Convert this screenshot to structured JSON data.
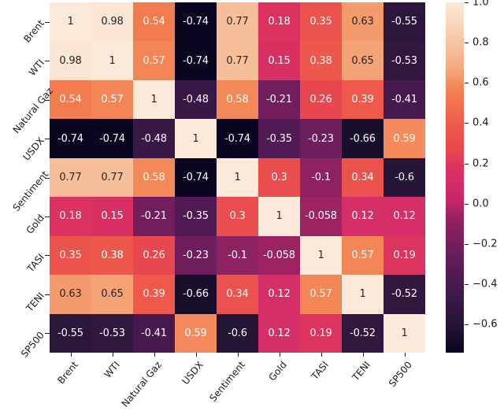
{
  "figure": {
    "background": "#ffffff",
    "axis_text_color": "#1a1a1a"
  },
  "chart_data": {
    "type": "heatmap",
    "title": "",
    "description": "Correlation matrix heatmap of market variables",
    "categories": [
      "Brent",
      "WTI",
      "Natural Gaz",
      "USDX",
      "Sentiment",
      "Gold",
      "TASI",
      "TENI",
      "SP500"
    ],
    "matrix": [
      [
        1,
        0.98,
        0.54,
        -0.74,
        0.77,
        0.18,
        0.35,
        0.63,
        -0.55
      ],
      [
        0.98,
        1,
        0.57,
        -0.74,
        0.77,
        0.15,
        0.38,
        0.65,
        -0.53
      ],
      [
        0.54,
        0.57,
        1,
        -0.48,
        0.58,
        -0.21,
        0.26,
        0.39,
        -0.41
      ],
      [
        -0.74,
        -0.74,
        -0.48,
        1,
        -0.74,
        -0.35,
        -0.23,
        -0.66,
        0.59
      ],
      [
        0.77,
        0.77,
        0.58,
        -0.74,
        1,
        0.3,
        -0.1,
        0.34,
        -0.6
      ],
      [
        0.18,
        0.15,
        -0.21,
        -0.35,
        0.3,
        1,
        -0.058,
        0.12,
        0.12
      ],
      [
        0.35,
        0.38,
        0.26,
        -0.23,
        -0.1,
        -0.058,
        1,
        0.57,
        0.19
      ],
      [
        0.63,
        0.65,
        0.39,
        -0.66,
        0.34,
        0.12,
        0.57,
        1,
        -0.52
      ],
      [
        -0.55,
        -0.53,
        -0.41,
        0.59,
        -0.6,
        0.12,
        0.19,
        -0.52,
        1
      ]
    ],
    "vmin": -0.74,
    "vmax": 1.0,
    "grid_on": false,
    "legend_position": "right-colorbar",
    "colormap": {
      "name": "rocket",
      "anchors": [
        {
          "v": -0.74,
          "c": "#0a0622"
        },
        {
          "v": -0.66,
          "c": "#1a0e2d"
        },
        {
          "v": -0.6,
          "c": "#251537"
        },
        {
          "v": -0.52,
          "c": "#32173f"
        },
        {
          "v": -0.41,
          "c": "#46194f"
        },
        {
          "v": -0.35,
          "c": "#521a55"
        },
        {
          "v": -0.23,
          "c": "#6d1e5b"
        },
        {
          "v": -0.1,
          "c": "#8e2160"
        },
        {
          "v": -0.058,
          "c": "#9c2262"
        },
        {
          "v": 0.0,
          "c": "#c0266a"
        },
        {
          "v": 0.12,
          "c": "#d62e68"
        },
        {
          "v": 0.19,
          "c": "#dc335f"
        },
        {
          "v": 0.26,
          "c": "#e74850"
        },
        {
          "v": 0.38,
          "c": "#ee574c"
        },
        {
          "v": 0.54,
          "c": "#f27c4f"
        },
        {
          "v": 0.59,
          "c": "#f38b5c"
        },
        {
          "v": 0.65,
          "c": "#f4a376"
        },
        {
          "v": 0.77,
          "c": "#f6bf99"
        },
        {
          "v": 1.0,
          "c": "#fbead9"
        }
      ]
    },
    "annotation": {
      "light_text_color": "#ffffff",
      "dark_text_color": "#262626",
      "dark_text_threshold": 0.6
    },
    "colorbar": {
      "tick_labels": [
        "1.0",
        "0.8",
        "0.6",
        "0.4",
        "0.2",
        "0.0",
        "−0.2",
        "−0.4",
        "−0.6"
      ],
      "tick_values": [
        1.0,
        0.8,
        0.6,
        0.4,
        0.2,
        0.0,
        -0.2,
        -0.4,
        -0.6
      ]
    }
  }
}
